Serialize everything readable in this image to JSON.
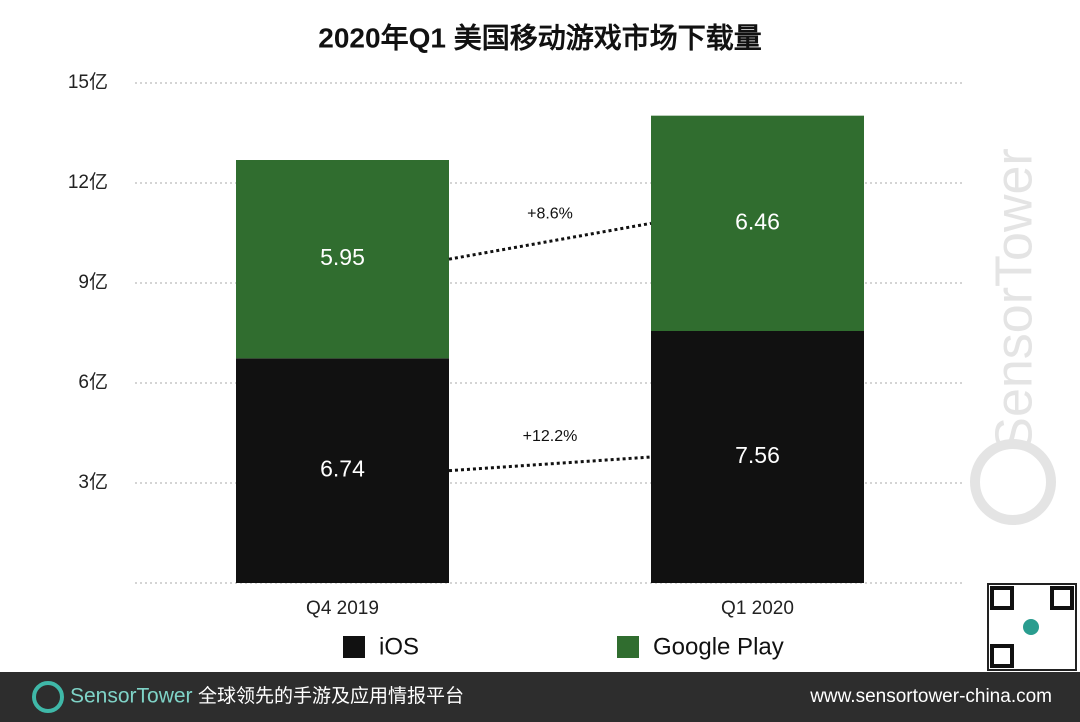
{
  "chart_data": {
    "type": "stacked_bar",
    "title": "2020年Q1 美国移动游戏市场下载量",
    "categories": [
      "Q4  2019",
      "Q1 2020"
    ],
    "series": [
      {
        "name": "iOS",
        "color": "#111111",
        "values": [
          6.74,
          7.56
        ]
      },
      {
        "name": "Google Play",
        "color": "#306d2f",
        "values": [
          5.95,
          6.46
        ]
      }
    ],
    "annotations": [
      "+12.2%",
      "+8.6%"
    ],
    "ylim": [
      0,
      15
    ],
    "yticks": [
      {
        "value": 3,
        "label": "3亿"
      },
      {
        "value": 6,
        "label": "6亿"
      },
      {
        "value": 9,
        "label": "9亿"
      },
      {
        "value": 12,
        "label": "12亿"
      },
      {
        "value": 15,
        "label": "15亿"
      }
    ],
    "grid": true
  },
  "watermark": "SensorTower",
  "footer": {
    "brand": "SensorTower",
    "tagline": "全球领先的手游及应用情报平台",
    "url": "www.sensortower-china.com"
  }
}
